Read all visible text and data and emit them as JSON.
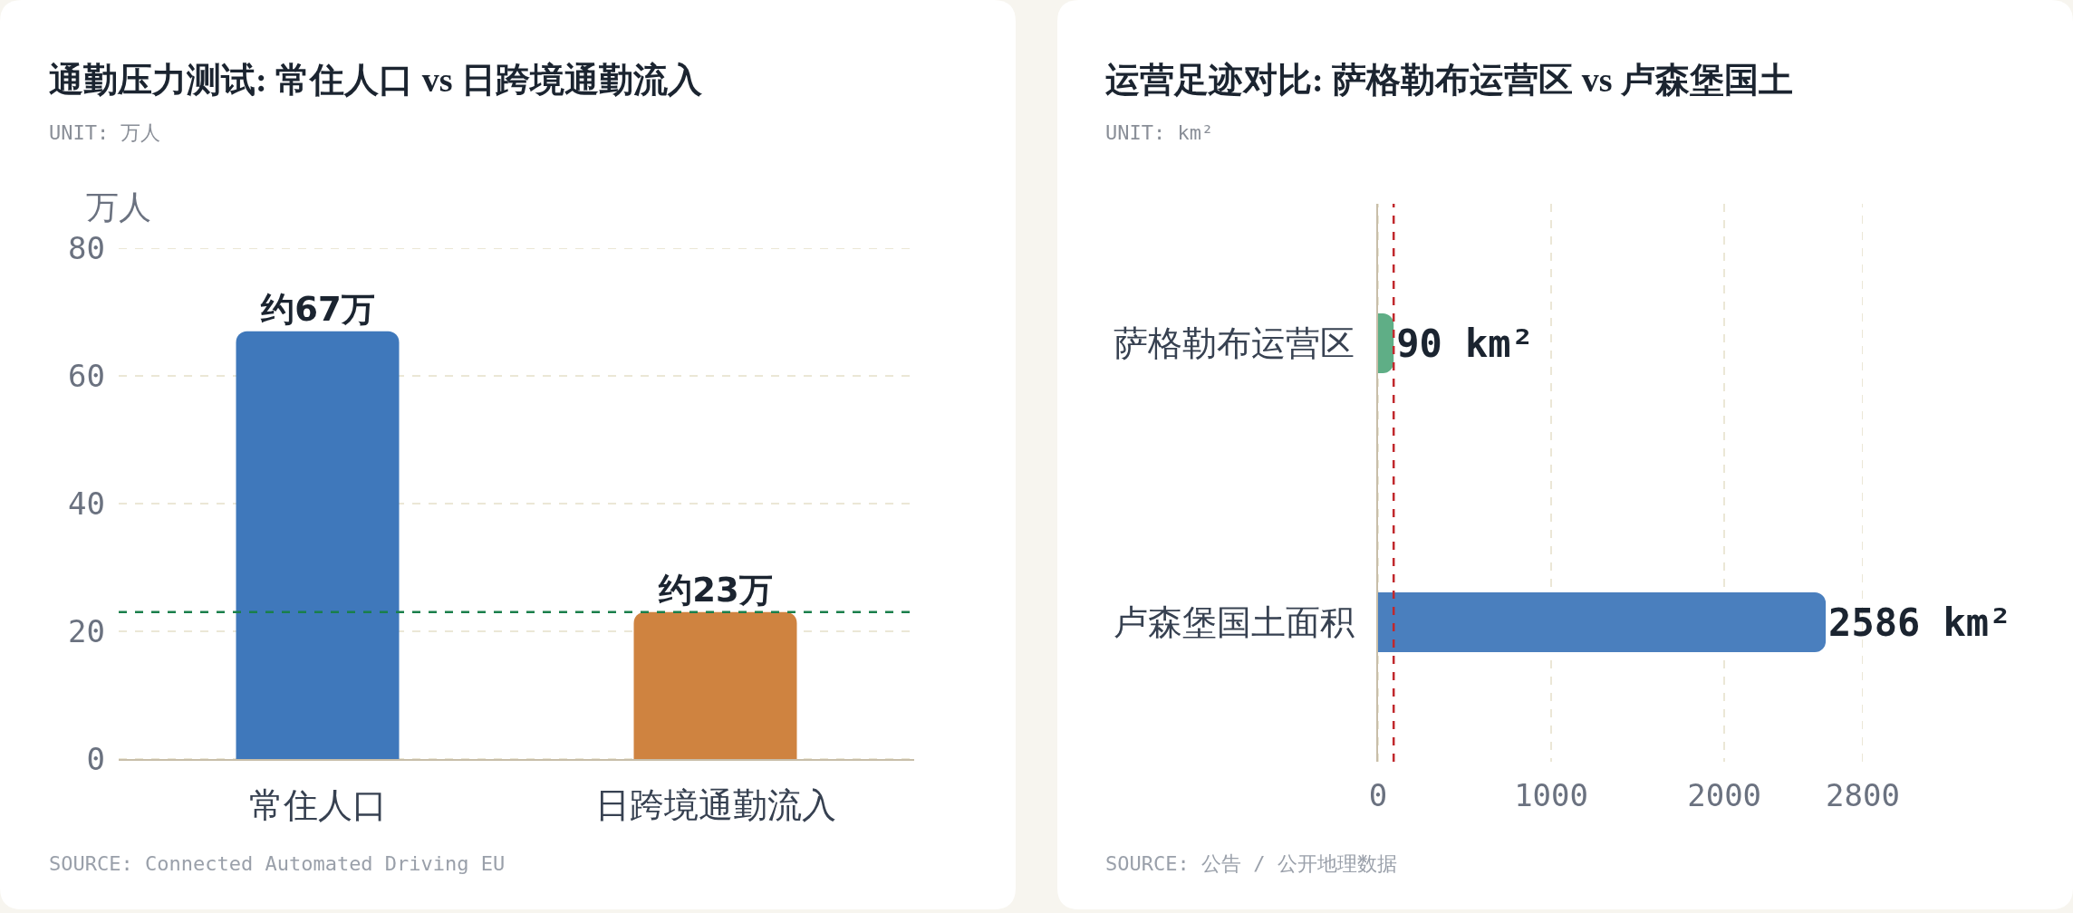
{
  "chart_data": [
    {
      "type": "bar",
      "title": "通勤压力测试: 常住人口 vs 日跨境通勤流入",
      "subtitle": "UNIT: 万人",
      "ylabel": "万人",
      "categories": [
        "常住人口",
        "日跨境通勤流入"
      ],
      "values": [
        67,
        23
      ],
      "colors": [
        "#3f78bb",
        "#cf8340"
      ],
      "value_labels": [
        "约67万",
        "约23万"
      ],
      "ylim": [
        0,
        80
      ],
      "yticks": [
        0,
        20,
        40,
        60,
        80
      ],
      "grid": "y",
      "ref_lines": [
        {
          "axis": "y",
          "value": 23,
          "color": "#1a7f4b",
          "line_style": "dashed"
        }
      ],
      "annotations": [
        "SOURCE: Connected Automated Driving EU"
      ]
    },
    {
      "type": "bar",
      "orientation": "horizontal",
      "title": "运营足迹对比: 萨格勒布运营区 vs 卢森堡国土",
      "subtitle": "UNIT: km²",
      "categories": [
        "萨格勒布运营区",
        "卢森堡国土面积"
      ],
      "values": [
        90,
        2586
      ],
      "colors": [
        "#5fae86",
        "#4a7fbe"
      ],
      "value_labels": [
        "90 km²",
        "2586 km²"
      ],
      "xlim": [
        0,
        2800
      ],
      "xticks": [
        0,
        1000,
        2000,
        2800
      ],
      "grid": "x",
      "ref_lines": [
        {
          "axis": "x",
          "value": 90,
          "color": "#c0282d",
          "line_style": "dashed"
        }
      ],
      "annotations": [
        "SOURCE: 公告 / 公开地理数据"
      ]
    }
  ]
}
